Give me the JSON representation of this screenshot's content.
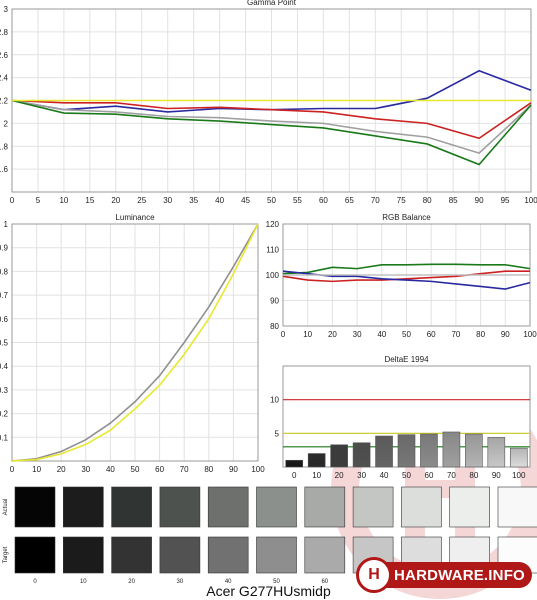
{
  "page_title": "Acer G277HUsmidp",
  "logo_text": "HARDWARE.INFO",
  "chart_data": [
    {
      "id": "gamma",
      "type": "line",
      "title": "Gamma Point",
      "x": [
        0,
        10,
        20,
        30,
        40,
        50,
        60,
        70,
        80,
        90,
        100
      ],
      "xticks": [
        0,
        5,
        10,
        15,
        20,
        25,
        30,
        35,
        40,
        45,
        50,
        55,
        60,
        65,
        70,
        75,
        80,
        85,
        90,
        95,
        100
      ],
      "yticks": [
        1.6,
        1.8,
        2,
        2.2,
        2.4,
        2.6,
        2.8,
        3
      ],
      "xlim": [
        0,
        100
      ],
      "ylim": [
        1.4,
        3
      ],
      "grid": true,
      "series": [
        {
          "color": "#2a2aa0",
          "values": [
            2.2,
            2.12,
            2.15,
            2.1,
            2.13,
            2.12,
            2.13,
            2.13,
            2.22,
            2.46,
            2.29
          ]
        },
        {
          "color": "#cc2222",
          "values": [
            2.2,
            2.18,
            2.18,
            2.13,
            2.14,
            2.12,
            2.1,
            2.04,
            2.0,
            1.87,
            2.18
          ]
        },
        {
          "color": "#a0a0a0",
          "values": [
            2.2,
            2.12,
            2.1,
            2.06,
            2.05,
            2.02,
            2.0,
            1.93,
            1.88,
            1.74,
            2.16
          ]
        },
        {
          "color": "#1a7a1a",
          "values": [
            2.2,
            2.09,
            2.08,
            2.04,
            2.02,
            1.99,
            1.96,
            1.89,
            1.82,
            1.64,
            2.16
          ]
        },
        {
          "color": "#e8e830",
          "values": [
            2.2,
            2.2,
            2.2,
            2.2,
            2.2,
            2.2,
            2.2,
            2.2,
            2.2,
            2.2,
            2.2
          ]
        }
      ]
    },
    {
      "id": "luminance",
      "type": "line",
      "title": "Luminance",
      "x": [
        0,
        10,
        20,
        30,
        40,
        50,
        60,
        70,
        80,
        90,
        100
      ],
      "xticks": [
        0,
        10,
        20,
        30,
        40,
        50,
        60,
        70,
        80,
        90,
        100
      ],
      "yticks": [
        0.1,
        0.2,
        0.3,
        0.4,
        0.5,
        0.6,
        0.7,
        0.8,
        0.9,
        1
      ],
      "xlim": [
        0,
        100
      ],
      "ylim": [
        0,
        1
      ],
      "grid": true,
      "series": [
        {
          "color": "#909090",
          "values": [
            0,
            0.01,
            0.04,
            0.09,
            0.16,
            0.25,
            0.36,
            0.5,
            0.65,
            0.82,
            1.0
          ]
        },
        {
          "color": "#e8e830",
          "values": [
            0,
            0.006,
            0.03,
            0.07,
            0.13,
            0.22,
            0.32,
            0.45,
            0.6,
            0.79,
            1.0
          ]
        }
      ]
    },
    {
      "id": "rgb",
      "type": "line",
      "title": "RGB Balance",
      "x": [
        0,
        10,
        20,
        30,
        40,
        50,
        60,
        70,
        80,
        90,
        100
      ],
      "xticks": [
        0,
        10,
        20,
        30,
        40,
        50,
        60,
        70,
        80,
        90,
        100
      ],
      "yticks": [
        80,
        90,
        100,
        110,
        120
      ],
      "xlim": [
        0,
        100
      ],
      "ylim": [
        80,
        120
      ],
      "grid": true,
      "series": [
        {
          "color": "#cc2222",
          "values": [
            99.5,
            98,
            97.5,
            98,
            98,
            98.5,
            99,
            99.5,
            100.5,
            101.5,
            101.5
          ]
        },
        {
          "color": "#1a7a1a",
          "values": [
            100.5,
            101,
            103,
            102.5,
            104,
            104,
            104.2,
            104.2,
            104,
            104,
            102.5
          ]
        },
        {
          "color": "#2a2aa0",
          "values": [
            101.5,
            100.5,
            99.5,
            99.5,
            98.5,
            98,
            97.5,
            96.5,
            95.5,
            94.5,
            97
          ]
        },
        {
          "color": "#c0c0c0",
          "values": [
            100,
            100,
            100,
            100,
            100,
            100,
            100,
            100,
            100,
            100,
            100
          ]
        }
      ]
    },
    {
      "id": "deltae",
      "type": "bar",
      "title": "DeltaE 1994",
      "categories": [
        "0",
        "10",
        "20",
        "30",
        "40",
        "50",
        "60",
        "70",
        "80",
        "90",
        "100"
      ],
      "values": [
        1.0,
        2.0,
        3.3,
        3.6,
        4.6,
        4.8,
        4.9,
        5.2,
        4.9,
        4.4,
        2.8
      ],
      "yticks": [
        5,
        10
      ],
      "ylim": [
        0,
        15
      ],
      "reference_lines": [
        {
          "value": 10,
          "color": "#cc2222"
        },
        {
          "value": 5,
          "color": "#c8c820"
        },
        {
          "value": 3,
          "color": "#1a7a1a"
        }
      ]
    }
  ],
  "swatches": {
    "row_labels": [
      "Actual",
      "Target"
    ],
    "labels": [
      "0",
      "10",
      "20",
      "30",
      "40",
      "50",
      "60",
      "70",
      "80",
      "90",
      "100"
    ],
    "actual": [
      "#050505",
      "#1c1c1c",
      "#303432",
      "#4e524e",
      "#6d706d",
      "#8c908c",
      "#a8aaa8",
      "#c4c6c4",
      "#dcdedc",
      "#eceeec",
      "#f8f8f8"
    ],
    "target": [
      "#000000",
      "#1b1b1b",
      "#333333",
      "#525252",
      "#717171",
      "#8e8e8e",
      "#aaaaaa",
      "#c6c6c6",
      "#dddddd",
      "#efefef",
      "#fcfcfc"
    ]
  }
}
